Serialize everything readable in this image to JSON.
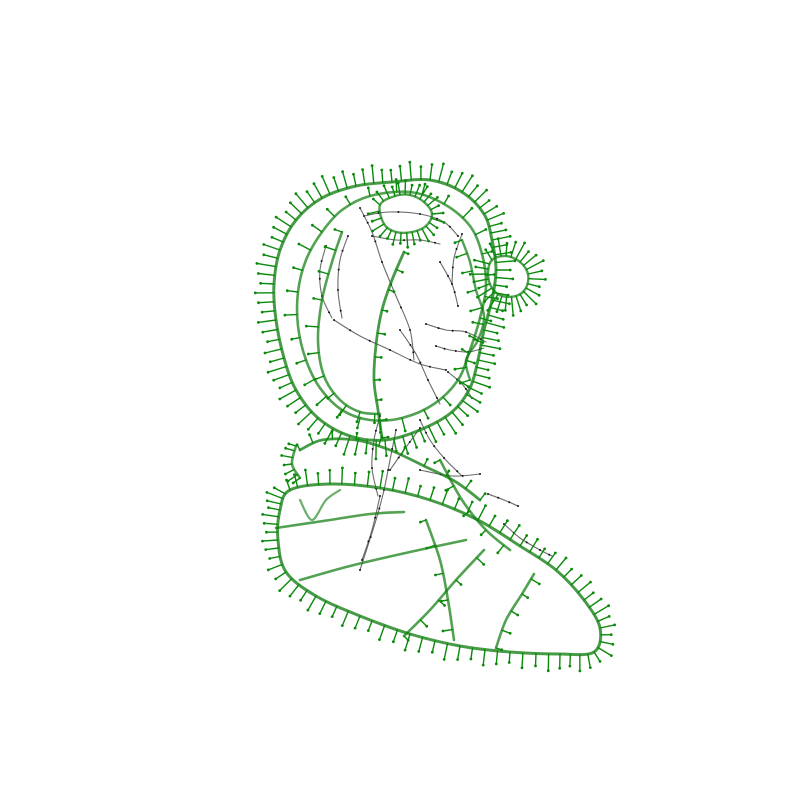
{
  "figure": {
    "background": "#ffffff",
    "colors": {
      "silhouette": "#0a7a0a",
      "normal": "#0a8a0a",
      "interior": "#3a3a3a",
      "point": "#111111"
    }
  }
}
